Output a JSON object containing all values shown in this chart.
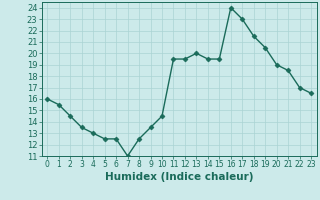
{
  "xlabel": "Humidex (Indice chaleur)",
  "x_values": [
    0,
    1,
    2,
    3,
    4,
    5,
    6,
    7,
    8,
    9,
    10,
    11,
    12,
    13,
    14,
    15,
    16,
    17,
    18,
    19,
    20,
    21,
    22,
    23
  ],
  "y_values": [
    16,
    15.5,
    14.5,
    13.5,
    13,
    12.5,
    12.5,
    11,
    12.5,
    13.5,
    14.5,
    19.5,
    19.5,
    20,
    19.5,
    19.5,
    24,
    23,
    21.5,
    20.5,
    19,
    18.5,
    17,
    16.5
  ],
  "ylim": [
    11,
    24.5
  ],
  "xlim": [
    -0.5,
    23.5
  ],
  "yticks": [
    11,
    12,
    13,
    14,
    15,
    16,
    17,
    18,
    19,
    20,
    21,
    22,
    23,
    24
  ],
  "xticks": [
    0,
    1,
    2,
    3,
    4,
    5,
    6,
    7,
    8,
    9,
    10,
    11,
    12,
    13,
    14,
    15,
    16,
    17,
    18,
    19,
    20,
    21,
    22,
    23
  ],
  "xtick_labels": [
    "0",
    "1",
    "2",
    "3",
    "4",
    "5",
    "6",
    "7",
    "8",
    "9",
    "10",
    "11",
    "12",
    "13",
    "14",
    "15",
    "16",
    "17",
    "18",
    "19",
    "20",
    "21",
    "22",
    "23"
  ],
  "line_color": "#1a6b5a",
  "marker_color": "#1a6b5a",
  "bg_color": "#cceaea",
  "grid_color": "#aad4d4",
  "axis_label_color": "#1a6b5a",
  "tick_label_color": "#1a6b5a",
  "marker": "D",
  "markersize": 2.5,
  "linewidth": 1.0,
  "xlabel_fontsize": 7.5,
  "ytick_fontsize": 6.0,
  "xtick_fontsize": 5.5
}
